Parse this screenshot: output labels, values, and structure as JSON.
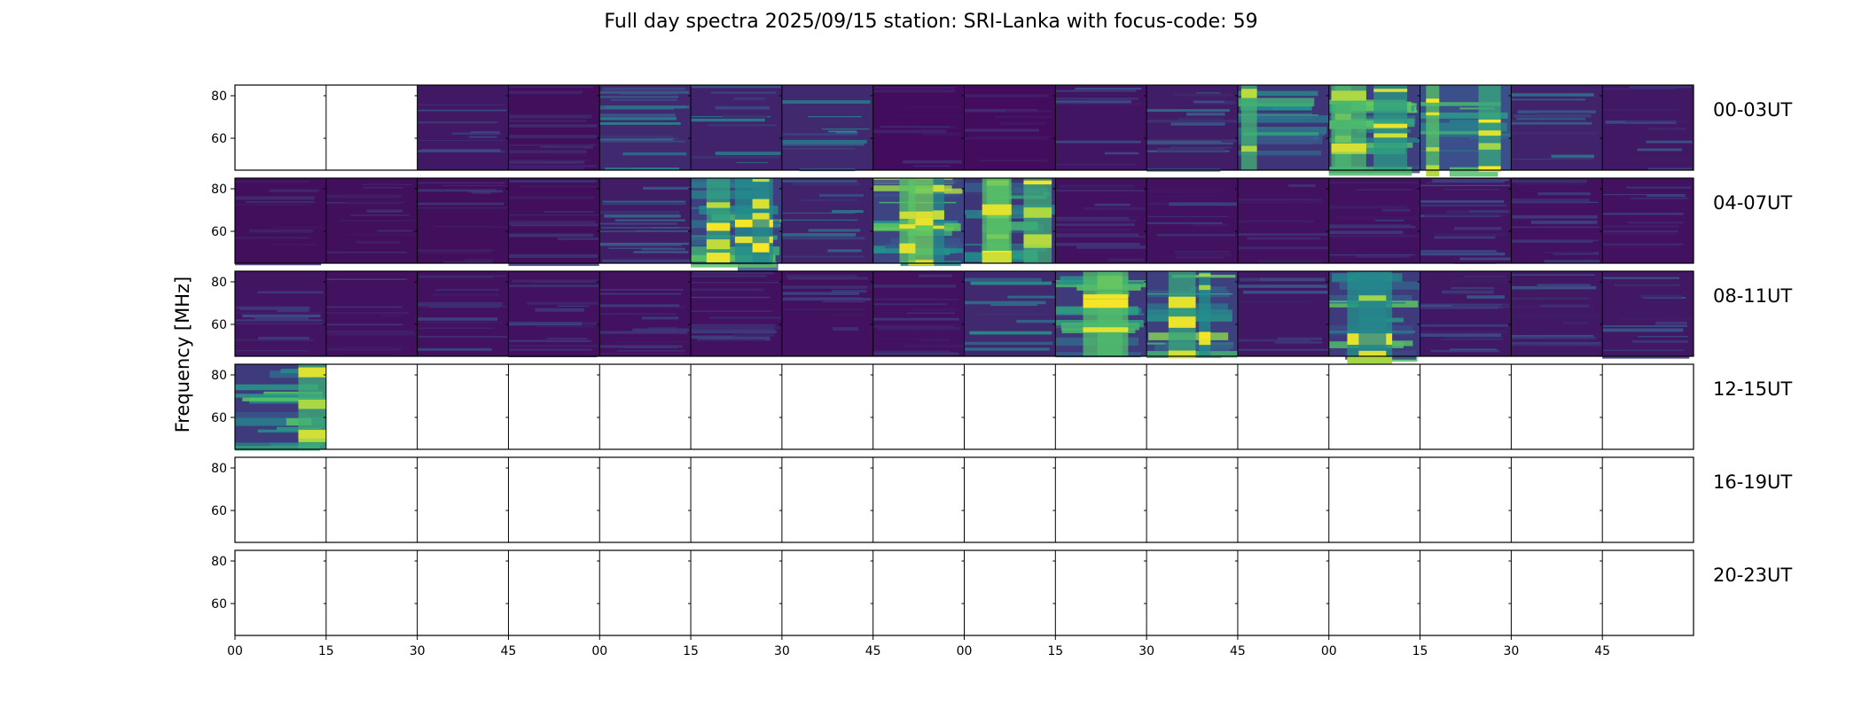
{
  "chart_data": {
    "type": "heatmap",
    "title": "Full day spectra 2025/09/15 station: SRI-Lanka with focus-code: 59",
    "ylabel": "Frequency [MHz]",
    "xlabel": "",
    "yticks": [
      "80",
      "60"
    ],
    "ylim": [
      45,
      85
    ],
    "xticks": [
      "00",
      "15",
      "30",
      "45",
      "00",
      "15",
      "30",
      "45",
      "00",
      "15",
      "30",
      "45",
      "00",
      "15",
      "30",
      "45"
    ],
    "panels_per_row": 16,
    "panel_minutes": 15,
    "colormap": [
      "#440154",
      "#3b528b",
      "#21918c",
      "#5ec962",
      "#fde725"
    ],
    "rows": [
      {
        "label": "00-03UT",
        "intensity": [
          null,
          null,
          0.2,
          0.12,
          0.35,
          0.3,
          0.35,
          0.1,
          0.1,
          0.18,
          0.25,
          0.45,
          0.55,
          0.7,
          0.3,
          0.2
        ]
      },
      {
        "label": "04-07UT",
        "intensity": [
          0.12,
          0.12,
          0.12,
          0.12,
          0.25,
          0.55,
          0.3,
          0.6,
          0.45,
          0.15,
          0.15,
          0.15,
          0.15,
          0.18,
          0.15,
          0.15
        ]
      },
      {
        "label": "08-11UT",
        "intensity": [
          0.18,
          0.15,
          0.15,
          0.15,
          0.15,
          0.15,
          0.15,
          0.15,
          0.35,
          0.5,
          0.55,
          0.2,
          0.5,
          0.2,
          0.2,
          0.2
        ]
      },
      {
        "label": "12-15UT",
        "intensity": [
          0.5,
          null,
          null,
          null,
          null,
          null,
          null,
          null,
          null,
          null,
          null,
          null,
          null,
          null,
          null,
          null
        ]
      },
      {
        "label": "16-19UT",
        "intensity": [
          null,
          null,
          null,
          null,
          null,
          null,
          null,
          null,
          null,
          null,
          null,
          null,
          null,
          null,
          null,
          null
        ]
      },
      {
        "label": "20-23UT",
        "intensity": [
          null,
          null,
          null,
          null,
          null,
          null,
          null,
          null,
          null,
          null,
          null,
          null,
          null,
          null,
          null,
          null
        ]
      }
    ]
  }
}
